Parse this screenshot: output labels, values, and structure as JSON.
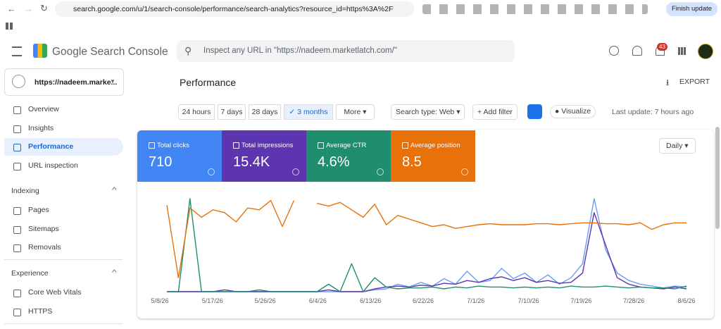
{
  "browser": {
    "url": "search.google.com/u/1/search-console/performance/search-analytics?resource_id=https%3A%2F%2Fnadee...",
    "update_button": "Finish update"
  },
  "header": {
    "title": "Google Search Console",
    "search_placeholder": "Inspect any URL in \"https://nadeem.marketlatch.com/\"",
    "notifications": "43"
  },
  "sidebar": {
    "property": "https://nadeem.marke...",
    "items": [
      "Overview",
      "Insights",
      "Performance",
      "URL inspection"
    ],
    "sections": [
      {
        "title": "Indexing",
        "items": [
          "Pages",
          "Sitemaps",
          "Removals"
        ]
      },
      {
        "title": "Experience",
        "items": [
          "Core Web Vitals",
          "HTTPS"
        ]
      }
    ]
  },
  "main": {
    "title": "Performance",
    "export": "EXPORT",
    "date_ranges": [
      "24 hours",
      "7 days",
      "28 days",
      "3 months",
      "More"
    ],
    "search_type": "Search type: Web",
    "add_filter": "Add filter",
    "visualize": "Visualize",
    "last_update": "Last update: 7 hours ago",
    "metrics": [
      {
        "label": "Total clicks",
        "value": "710"
      },
      {
        "label": "Total impressions",
        "value": "15.4K"
      },
      {
        "label": "Average CTR",
        "value": "4.6%"
      },
      {
        "label": "Average position",
        "value": "8.5"
      }
    ],
    "granularity": "Daily"
  },
  "chart_data": {
    "type": "line",
    "ylim": [
      0,
      100
    ],
    "xticks": [
      "5/8/26",
      "5/17/26",
      "5/26/26",
      "6/4/26",
      "6/13/26",
      "6/22/26",
      "7/1/26",
      "7/10/26",
      "7/19/26",
      "7/28/26",
      "8/6/26"
    ],
    "series": [
      {
        "name": "Total clicks",
        "color": "#6a9ef5",
        "values": [
          0,
          0,
          0,
          0,
          0,
          0,
          0,
          0,
          0,
          0,
          0,
          0,
          0,
          0,
          0,
          0,
          0,
          0,
          2,
          3,
          8,
          5,
          10,
          6,
          14,
          8,
          22,
          10,
          12,
          25,
          14,
          20,
          10,
          18,
          8,
          15,
          30,
          100,
          45,
          20,
          12,
          8,
          6,
          4,
          6,
          5
        ]
      },
      {
        "name": "Total impressions",
        "color": "#5e35b1",
        "values": [
          0,
          0,
          0,
          0,
          0,
          2,
          0,
          0,
          0,
          0,
          0,
          0,
          0,
          0,
          2,
          0,
          0,
          0,
          3,
          5,
          6,
          5,
          7,
          6,
          9,
          8,
          12,
          10,
          14,
          16,
          12,
          15,
          10,
          12,
          9,
          10,
          20,
          85,
          50,
          15,
          8,
          5,
          4,
          3,
          5,
          3
        ]
      },
      {
        "name": "Average CTR",
        "color": "#1e8e6e",
        "values": [
          0,
          0,
          100,
          0,
          0,
          0,
          0,
          0,
          2,
          0,
          0,
          0,
          0,
          0,
          8,
          0,
          30,
          0,
          15,
          5,
          3,
          4,
          4,
          5,
          3,
          5,
          4,
          6,
          5,
          5,
          4,
          5,
          4,
          5,
          4,
          6,
          5,
          5,
          6,
          5,
          4,
          5,
          4,
          4,
          3,
          6
        ]
      },
      {
        "name": "Average position",
        "color": "#e8710a",
        "values": [
          93,
          15,
          90,
          80,
          88,
          85,
          75,
          90,
          88,
          98,
          70,
          98,
          null,
          95,
          92,
          96,
          88,
          80,
          94,
          72,
          82,
          78,
          74,
          70,
          72,
          68,
          70,
          72,
          73,
          72,
          72,
          72,
          73,
          73,
          72,
          73,
          74,
          74,
          73,
          73,
          72,
          74,
          67,
          72,
          74,
          74
        ]
      }
    ]
  }
}
